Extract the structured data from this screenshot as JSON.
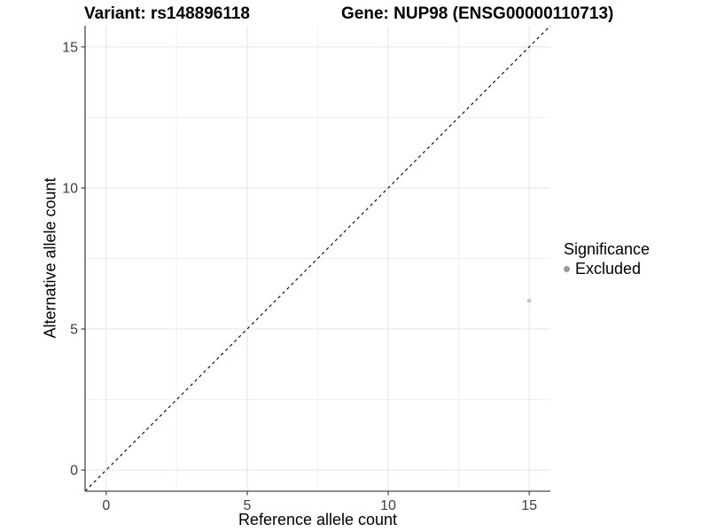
{
  "titles": {
    "variant": "Variant: rs148896118",
    "gene": "Gene: NUP98 (ENSG00000110713)"
  },
  "axes": {
    "x": {
      "label": "Reference allele count",
      "ticks": [
        0,
        5,
        10,
        15
      ],
      "minor_ticks": [
        2.5,
        7.5,
        12.5
      ]
    },
    "y": {
      "label": "Alternative allele count",
      "ticks": [
        0,
        5,
        10,
        15
      ],
      "minor_ticks": [
        2.5,
        7.5,
        12.5
      ]
    }
  },
  "legend": {
    "title": "Significance",
    "items": [
      {
        "label": "Excluded",
        "key_color": "#999999"
      }
    ]
  },
  "colors": {
    "grid_major": "#e4e4e4",
    "grid_minor": "#f1f1f1",
    "axis_line": "#474747",
    "tick_label": "#404040",
    "reference_line": "#000000",
    "point": "#c6c6c6"
  },
  "chart_data": {
    "type": "scatter",
    "title": "Variant: rs148896118 | Gene: NUP98 (ENSG00000110713)",
    "xlabel": "Reference allele count",
    "ylabel": "Alternative allele count",
    "xlim": [
      -0.75,
      15.75
    ],
    "ylim": [
      -0.75,
      15.75
    ],
    "x_ticks": [
      0,
      5,
      10,
      15
    ],
    "y_ticks": [
      0,
      5,
      10,
      15
    ],
    "x_minor_ticks": [
      2.5,
      7.5,
      12.5
    ],
    "y_minor_ticks": [
      2.5,
      7.5,
      12.5
    ],
    "grid": "on",
    "legend_position": "right",
    "series": [
      {
        "name": "Excluded",
        "color": "#c6c6c6",
        "points": [
          {
            "x": 15,
            "y": 6
          }
        ]
      }
    ],
    "reference_line": {
      "type": "identity",
      "style": "dashed",
      "from": [
        -0.75,
        -0.75
      ],
      "to": [
        15.75,
        15.75
      ]
    }
  }
}
